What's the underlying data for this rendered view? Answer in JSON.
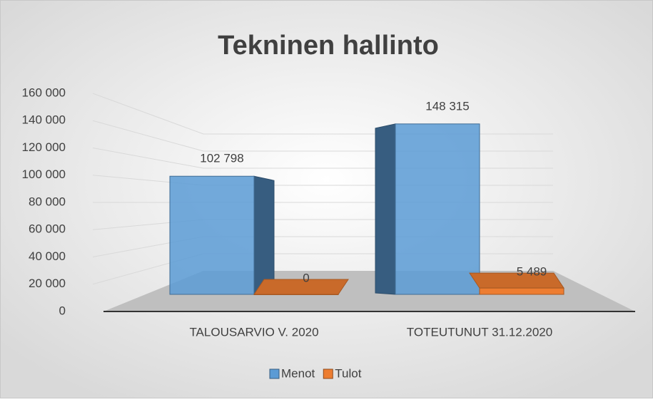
{
  "chart_data": {
    "type": "bar3d",
    "title": "Tekninen hallinto",
    "categories": [
      "TALOUSARVIO V. 2020",
      "TOTEUTUNUT 31.12.2020"
    ],
    "series": [
      {
        "name": "Menot",
        "color": "#5b9bd5",
        "values": [
          102798,
          148315
        ],
        "value_labels": [
          "102 798",
          "148 315"
        ]
      },
      {
        "name": "Tulot",
        "color": "#ed7d31",
        "values": [
          0,
          5489
        ],
        "value_labels": [
          "0",
          "5 489"
        ]
      }
    ],
    "ylim": [
      0,
      160000
    ],
    "yticks": [
      0,
      {
        "value": 20000,
        "label": "20 000"
      },
      {
        "value": 40000,
        "label": "40 000"
      },
      {
        "value": 60000,
        "label": "60 000"
      },
      {
        "value": 80000,
        "label": "80 000"
      },
      {
        "value": 100000,
        "label": "100 000"
      },
      {
        "value": 120000,
        "label": "120 000"
      },
      {
        "value": 140000,
        "label": "140 000"
      },
      {
        "value": 160000,
        "label": "160 000"
      }
    ],
    "grid": true,
    "legend": "bottom"
  }
}
